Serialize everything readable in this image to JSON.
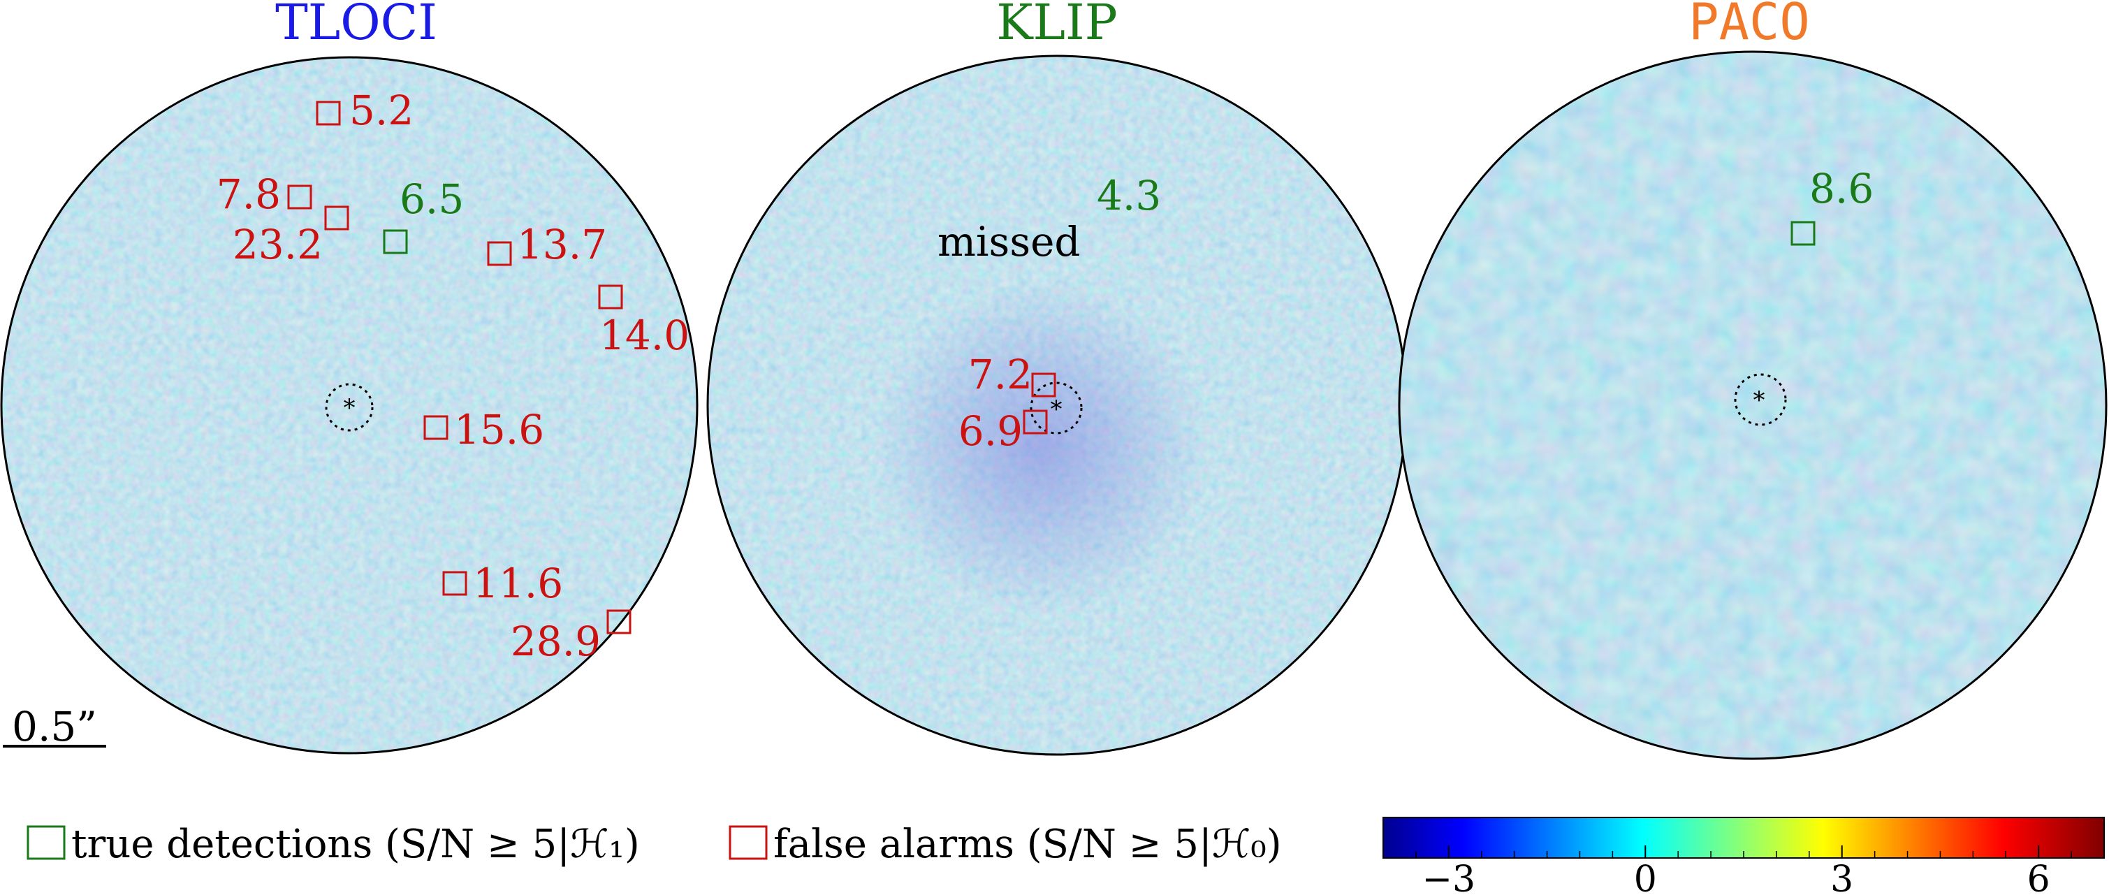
{
  "colors": {
    "true_detection": "#1a7a1a",
    "false_alarm": "#cc1111",
    "tloci": "#1a1ae6",
    "klip": "#1a7a1a",
    "paco": "#f07a2a",
    "map_background": "#a6dcef"
  },
  "panels": [
    {
      "title": "TLOCI",
      "detections": [
        {
          "kind": "false",
          "label": "5.2"
        },
        {
          "kind": "false",
          "label": "7.8"
        },
        {
          "kind": "false",
          "label": "23.2"
        },
        {
          "kind": "true",
          "label": "6.5"
        },
        {
          "kind": "false",
          "label": "13.7"
        },
        {
          "kind": "false",
          "label": "14.0"
        },
        {
          "kind": "false",
          "label": "15.6"
        },
        {
          "kind": "false",
          "label": "11.6"
        },
        {
          "kind": "false",
          "label": "28.9"
        }
      ]
    },
    {
      "title": "KLIP",
      "missed_text": "missed",
      "detections": [
        {
          "kind": "true_value",
          "label": "4.3"
        },
        {
          "kind": "false",
          "label": "7.2"
        },
        {
          "kind": "false",
          "label": "6.9"
        }
      ]
    },
    {
      "title": "PACO",
      "detections": [
        {
          "kind": "true",
          "label": "8.6"
        }
      ]
    }
  ],
  "scale_bar": {
    "label": "0.5”"
  },
  "legend": {
    "true_detections": "true detections (S/N ≥ 5|ℋ₁)",
    "false_alarms": "false alarms (S/N ≥ 5|ℋ₀)"
  },
  "colorbar": {
    "colormap": "jet",
    "range": [
      -4,
      7
    ],
    "tick_labels": [
      "−3",
      "0",
      "3",
      "6"
    ]
  }
}
